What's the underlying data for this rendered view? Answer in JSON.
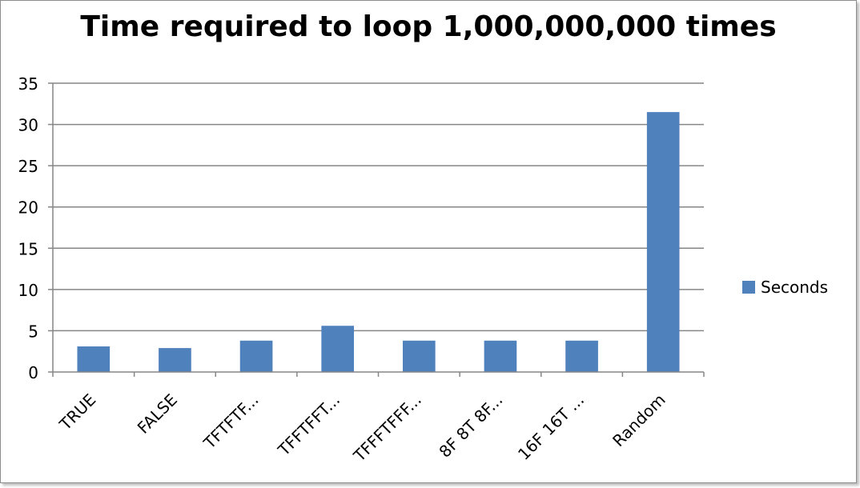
{
  "chart_data": {
    "type": "bar",
    "title": "Time required to loop 1,000,000,000 times",
    "xlabel": "",
    "ylabel": "",
    "categories": [
      "TRUE",
      "FALSE",
      "TFTFTF...",
      "TFFTFFT...",
      "TFFFTFFF...",
      "8F 8T 8F...",
      "16F 16T ...",
      "Random"
    ],
    "series": [
      {
        "name": "Seconds",
        "values": [
          3.1,
          2.9,
          3.8,
          5.6,
          3.8,
          3.8,
          3.8,
          31.5
        ],
        "color": "#4f81bd"
      }
    ],
    "ylim": [
      0,
      35
    ],
    "yticks": [
      0,
      5,
      10,
      15,
      20,
      25,
      30,
      35
    ],
    "grid": true,
    "legend": "right"
  }
}
